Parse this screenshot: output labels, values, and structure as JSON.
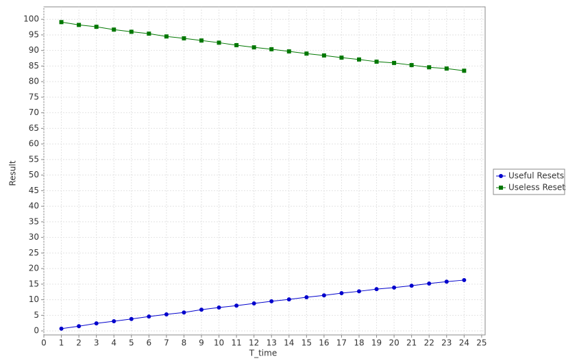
{
  "chart_data": {
    "type": "line",
    "x_label": "T_time",
    "y_label": "Result",
    "x": [
      1,
      2,
      3,
      4,
      5,
      6,
      7,
      8,
      9,
      10,
      11,
      12,
      13,
      14,
      15,
      16,
      17,
      18,
      19,
      20,
      21,
      22,
      23,
      24
    ],
    "series": [
      {
        "name": "Useful Resets",
        "color": "#0000cc",
        "marker": "circle",
        "values": [
          0.7,
          1.5,
          2.4,
          3.1,
          3.8,
          4.6,
          5.3,
          5.9,
          6.8,
          7.5,
          8.1,
          8.8,
          9.5,
          10.1,
          10.8,
          11.4,
          12.1,
          12.7,
          13.4,
          13.9,
          14.5,
          15.2,
          15.8,
          16.3
        ]
      },
      {
        "name": "Useless Resets",
        "color": "#007700",
        "marker": "square",
        "values": [
          99.1,
          98.2,
          97.6,
          96.7,
          96.0,
          95.4,
          94.5,
          93.9,
          93.2,
          92.5,
          91.7,
          91.0,
          90.4,
          89.7,
          89.0,
          88.4,
          87.7,
          87.1,
          86.4,
          86.0,
          85.3,
          84.6,
          84.2,
          83.5
        ]
      }
    ],
    "xlim": [
      0,
      25.2
    ],
    "ylim": [
      -1.3,
      104
    ],
    "xticks": [
      0,
      1,
      2,
      3,
      4,
      5,
      6,
      7,
      8,
      9,
      10,
      11,
      12,
      13,
      14,
      15,
      16,
      17,
      18,
      19,
      20,
      21,
      22,
      23,
      24,
      25
    ],
    "yticks": [
      0,
      5,
      10,
      15,
      20,
      25,
      30,
      35,
      40,
      45,
      50,
      55,
      60,
      65,
      70,
      75,
      80,
      85,
      90,
      95,
      100
    ],
    "grid": true,
    "legend": "right"
  }
}
